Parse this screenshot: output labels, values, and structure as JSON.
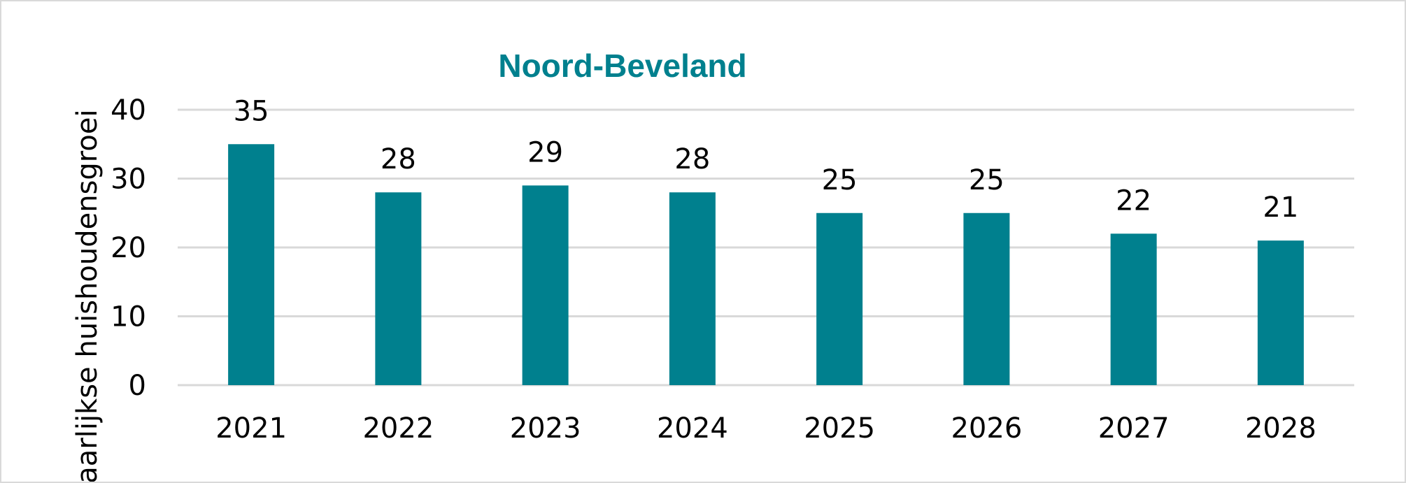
{
  "chart_data": {
    "type": "bar",
    "title": "Noord-Beveland",
    "ylabel": "Jaarlijkse huishoudensgroei",
    "xlabel": "",
    "categories": [
      "2021",
      "2022",
      "2023",
      "2024",
      "2025",
      "2026",
      "2027",
      "2028"
    ],
    "values": [
      35,
      28,
      29,
      28,
      25,
      25,
      22,
      21
    ],
    "data_labels": [
      "35",
      "28",
      "29",
      "28",
      "25",
      "25",
      "22",
      "21"
    ],
    "ylim": [
      0,
      40
    ],
    "yticks": [
      "0",
      "10",
      "20",
      "30",
      "40"
    ],
    "grid": true,
    "legend": "none"
  },
  "colors": {
    "bar": "#00808e",
    "title": "#00808e",
    "grid": "#d9d9d9",
    "border": "#d9d9d9"
  }
}
